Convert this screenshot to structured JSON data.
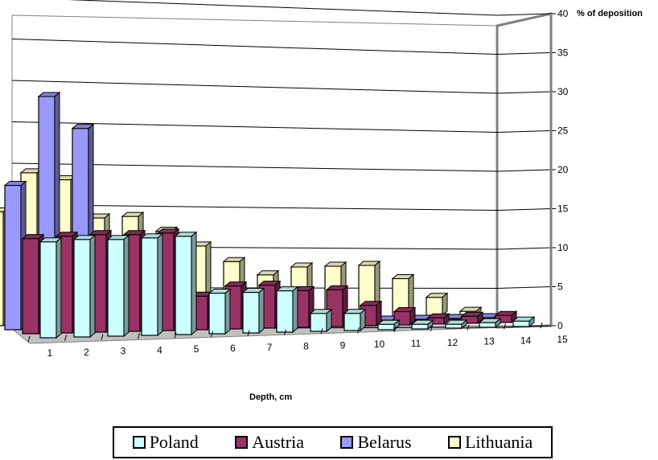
{
  "chart_data": {
    "type": "bar",
    "subtype": "3d-clustered-column",
    "categories": [
      "1",
      "2",
      "3",
      "4",
      "5",
      "6",
      "7",
      "8",
      "9",
      "10",
      "11",
      "12",
      "13",
      "14",
      "15"
    ],
    "series": [
      {
        "name": "Poland",
        "color": "#CCFFFF",
        "values": [
          12.3,
          12.5,
          12.4,
          12.5,
          12.6,
          5.2,
          5.2,
          5.3,
          2.3,
          2.2,
          0.7,
          0.6,
          0.5,
          0.6,
          0.7
        ]
      },
      {
        "name": "Austria",
        "color": "#993366",
        "values": [
          12.2,
          12.4,
          12.5,
          12.4,
          12.5,
          4.3,
          5.5,
          5.5,
          4.7,
          4.7,
          2.6,
          1.7,
          0.8,
          0.9,
          0.9
        ]
      },
      {
        "name": "Belarus",
        "color": "#9999FF",
        "values": [
          18.5,
          29.8,
          25.6,
          10.5,
          4.5,
          1.5,
          1.2,
          0.5,
          0.3,
          0.3,
          0.2,
          0.1,
          0.1,
          0.1,
          0.1
        ]
      },
      {
        "name": "Lithuania",
        "color": "#FFFFCC",
        "values": [
          14.6,
          19.5,
          18.5,
          13.5,
          13.6,
          11.6,
          9.6,
          7.5,
          5.7,
          6.6,
          6.6,
          6.6,
          4.8,
          2.3,
          0.4
        ]
      }
    ],
    "xlabel": "Depth, cm",
    "ylabel": "% of deposition",
    "yticks": [
      0,
      5,
      10,
      15,
      20,
      25,
      30,
      35,
      40
    ],
    "ylim": [
      0,
      40
    ],
    "grid": true,
    "legend_position": "bottom"
  }
}
